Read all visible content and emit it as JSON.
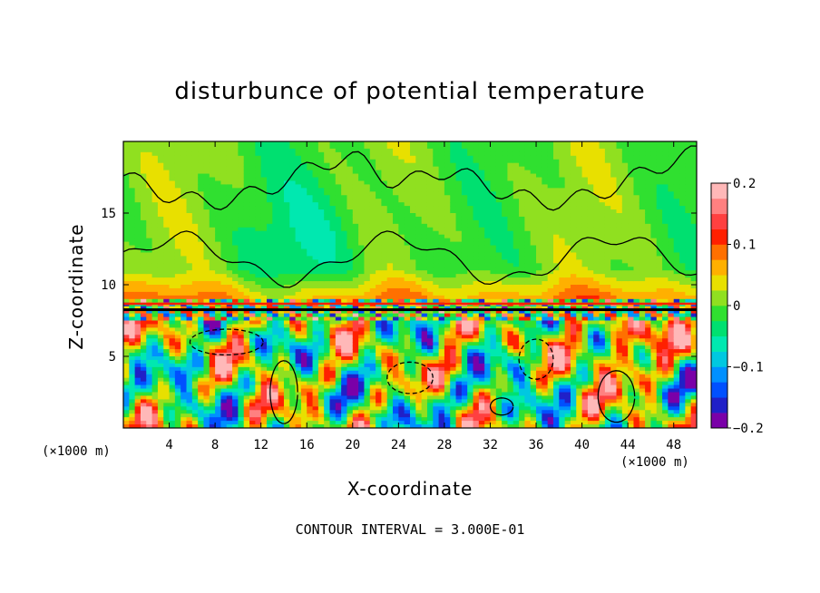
{
  "chart_data": {
    "type": "heatmap",
    "title": "disturbunce of potential temperature",
    "xlabel": "X-coordinate",
    "ylabel": "Z-coordinate",
    "x_unit_label": "(×1000 m)",
    "z_unit_label": "(×1000 m)",
    "xlim": [
      0,
      50
    ],
    "ylim": [
      0,
      20
    ],
    "x_ticks": [
      "4",
      "8",
      "12",
      "16",
      "20",
      "24",
      "28",
      "32",
      "36",
      "40",
      "44",
      "48"
    ],
    "y_ticks": [
      "5",
      "10",
      "15"
    ],
    "colorbar": {
      "range": [
        -0.2,
        0.2
      ],
      "tick_labels": [
        "0.2",
        "0.1",
        "0",
        "−0.1",
        "−0.2"
      ],
      "colors": [
        "#7a00a8",
        "#2020c8",
        "#0050ff",
        "#0090ff",
        "#00c8e0",
        "#00e8b0",
        "#00e070",
        "#30e030",
        "#90e020",
        "#e8e000",
        "#ffb000",
        "#ff7000",
        "#ff2000",
        "#ff4040",
        "#ff8080",
        "#ffb8b8"
      ]
    },
    "contour_interval_text": "CONTOUR INTERVAL = 3.000E-01",
    "tropopause_level_km": 8.6
  }
}
